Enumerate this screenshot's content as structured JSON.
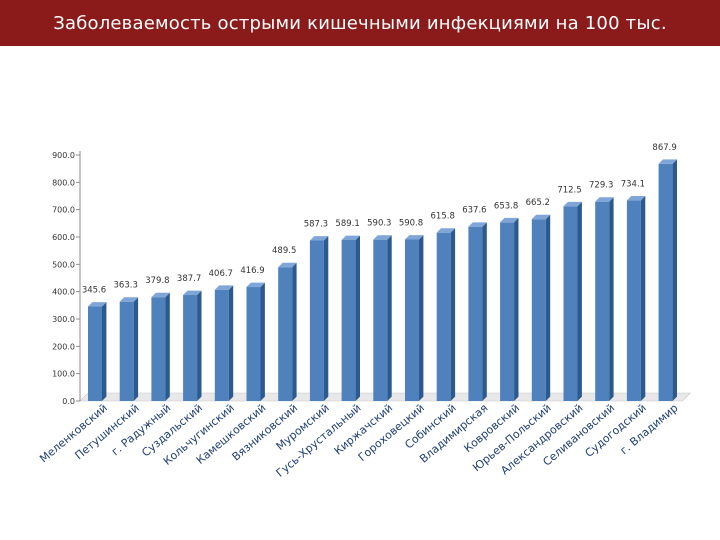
{
  "title": "Заболеваемость острыми кишечными инфекциями на 100 тыс.",
  "colors": {
    "bar": "#4f81bd",
    "bar_dark": "#2c5a8f",
    "bar_light": "#7fa6d6",
    "title_bg": "#8b1a1a",
    "category_text": "#1f3f73"
  },
  "chart_data": {
    "type": "bar",
    "title": "",
    "xlabel": "",
    "ylabel": "",
    "ylim": [
      0,
      900
    ],
    "yticks": [
      "0.0",
      "100.0",
      "200.0",
      "300.0",
      "400.0",
      "500.0",
      "600.0",
      "700.0",
      "800.0",
      "900.0"
    ],
    "grid": false,
    "legend": "none",
    "categories": [
      "Меленковский",
      "Петушинский",
      "г. Радужный",
      "Суздальский",
      "Кольчугинский",
      "Камешковский",
      "Вязниковский",
      "Муромский",
      "Гусь-Хрустальный",
      "Киржачский",
      "Гороховецкий",
      "Собинский",
      "Владимирская",
      "Ковровский",
      "Юрьев-Польский",
      "Александровский",
      "Селивановский",
      "Судогодский",
      "г. Владимир"
    ],
    "values": [
      345.6,
      363.3,
      379.8,
      387.7,
      406.7,
      416.9,
      489.5,
      587.3,
      589.1,
      590.3,
      590.8,
      615.8,
      637.6,
      653.8,
      665.2,
      712.5,
      729.3,
      734.1,
      867.9
    ],
    "labels": [
      "345.6",
      "363.3",
      "379.8",
      "387.7",
      "406.7",
      "416.9",
      "489.5",
      "587.3",
      "589.1",
      "590.3",
      "590.8",
      "615.8",
      "637.6",
      "653.8",
      "665.2",
      "712.5",
      "729.3",
      "734.1",
      "867.9"
    ]
  }
}
